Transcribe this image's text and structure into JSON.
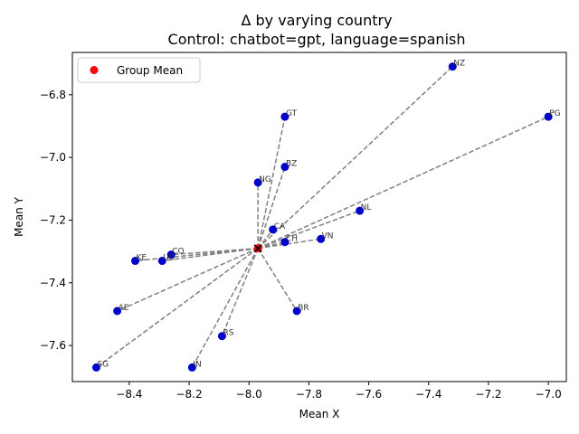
{
  "chart_data": {
    "type": "scatter",
    "title": "Δ by varying country",
    "subtitle": "Control: chatbot=gpt, language=spanish",
    "xlabel": "Mean X",
    "ylabel": "Mean Y",
    "xlim": [
      -8.59,
      -6.94
    ],
    "ylim": [
      -7.715,
      -6.665
    ],
    "xticks": [
      -8.4,
      -8.2,
      -8.0,
      -7.8,
      -7.6,
      -7.4,
      -7.2,
      -7.0
    ],
    "xtick_labels": [
      "−8.4",
      "−8.2",
      "−8.0",
      "−7.8",
      "−7.6",
      "−7.4",
      "−7.2",
      "−7.0"
    ],
    "yticks": [
      -7.6,
      -7.4,
      -7.2,
      -7.0,
      -6.8
    ],
    "ytick_labels": [
      "−7.6",
      "−7.4",
      "−7.2",
      "−7.0",
      "−6.8"
    ],
    "grid": false,
    "legend": {
      "position": "top-left",
      "entries": [
        "Group Mean"
      ]
    },
    "group_mean": {
      "label": "Group Mean",
      "x": -7.97,
      "y": -7.29
    },
    "points": [
      {
        "label": "NZ",
        "x": -7.32,
        "y": -6.71
      },
      {
        "label": "PG",
        "x": -7.0,
        "y": -6.87
      },
      {
        "label": "GT",
        "x": -7.88,
        "y": -6.87
      },
      {
        "label": "BZ",
        "x": -7.88,
        "y": -7.03
      },
      {
        "label": "NG",
        "x": -7.97,
        "y": -7.08
      },
      {
        "label": "NL",
        "x": -7.63,
        "y": -7.17
      },
      {
        "label": "CA",
        "x": -7.92,
        "y": -7.23
      },
      {
        "label": "CH",
        "x": -7.88,
        "y": -7.27
      },
      {
        "label": "VN",
        "x": -7.76,
        "y": -7.26
      },
      {
        "label": "CO",
        "x": -8.26,
        "y": -7.31
      },
      {
        "label": "US",
        "x": -8.29,
        "y": -7.33
      },
      {
        "label": "KE",
        "x": -8.38,
        "y": -7.33
      },
      {
        "label": "AE",
        "x": -8.44,
        "y": -7.49
      },
      {
        "label": "BR",
        "x": -7.84,
        "y": -7.49
      },
      {
        "label": "RS",
        "x": -8.09,
        "y": -7.57
      },
      {
        "label": "IN",
        "x": -8.19,
        "y": -7.67
      },
      {
        "label": "SG",
        "x": -8.51,
        "y": -7.67
      }
    ],
    "colors": {
      "points": "#0000cc",
      "group_mean": "#ff0000",
      "lines": "#808080"
    }
  }
}
